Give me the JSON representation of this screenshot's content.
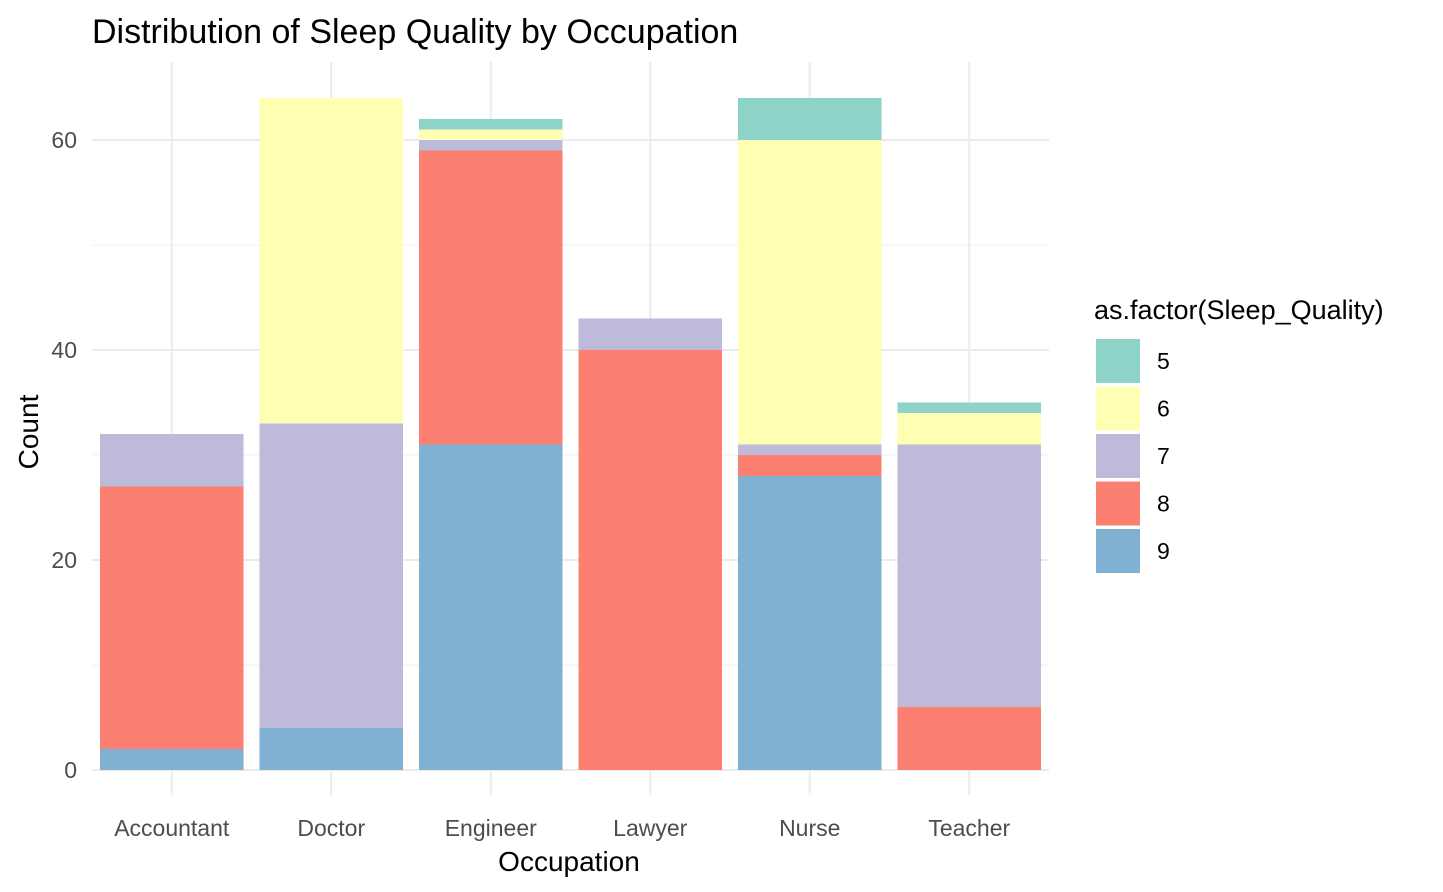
{
  "chart_data": {
    "type": "bar",
    "stacked": true,
    "title": "Distribution of Sleep Quality by Occupation",
    "xlabel": "Occupation",
    "ylabel": "Count",
    "ylim": [
      0,
      65
    ],
    "yticks": [
      0,
      20,
      40,
      60
    ],
    "grid": true,
    "legend_title": "as.factor(Sleep_Quality)",
    "legend_position": "right",
    "categories": [
      "Accountant",
      "Doctor",
      "Engineer",
      "Lawyer",
      "Nurse",
      "Teacher"
    ],
    "series": [
      {
        "name": "5",
        "color": "#8DD3C7",
        "values": [
          0,
          0,
          1,
          0,
          4,
          1
        ]
      },
      {
        "name": "6",
        "color": "#FFFFB3",
        "values": [
          0,
          31,
          1,
          0,
          29,
          3
        ]
      },
      {
        "name": "7",
        "color": "#BEBADA",
        "values": [
          5,
          29,
          1,
          3,
          1,
          25
        ]
      },
      {
        "name": "8",
        "color": "#FB8072",
        "values": [
          25,
          0,
          28,
          40,
          2,
          6
        ]
      },
      {
        "name": "9",
        "color": "#80B1D3",
        "values": [
          2,
          4,
          31,
          0,
          28,
          0
        ]
      }
    ]
  }
}
